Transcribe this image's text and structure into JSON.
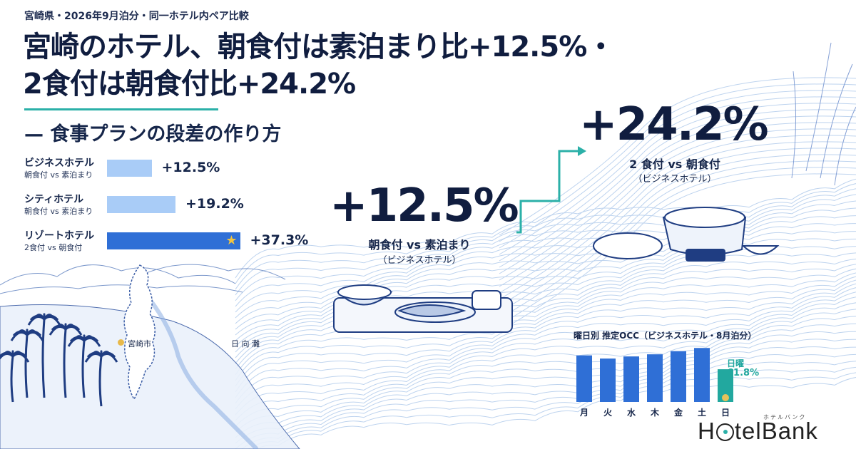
{
  "header": {
    "kicker": "宮崎県・2026年9月泊分・同一ホテル内ペア比較",
    "title_line1": "宮崎のホテル、朝食付は素泊まり比+12.5%・",
    "title_line2": "2食付は朝食付比+24.2%",
    "subtitle": "— 食事プランの段差の作り方"
  },
  "colors": {
    "navy": "#101d3f",
    "teal": "#2bb0a8",
    "bar_light": "#a9ccf7",
    "bar_highlight": "#2f6fd6",
    "star": "#f2c441"
  },
  "comparison": [
    {
      "name": "ビジネスホテル",
      "comparison": "朝食付 vs 素泊まり",
      "label": "+12.5%",
      "value": 12.5,
      "highlight": false
    },
    {
      "name": "シティホテル",
      "comparison": "朝食付 vs 素泊まり",
      "label": "+19.2%",
      "value": 19.2,
      "highlight": false
    },
    {
      "name": "リゾートホテル",
      "comparison": "2食付 vs 朝食付",
      "label": "+37.3%",
      "value": 37.3,
      "highlight": true,
      "icon": "star-icon"
    }
  ],
  "callouts": {
    "breakfast": {
      "value": "+12.5%",
      "caption": "朝食付 vs 素泊まり",
      "sub": "（ビジネスホテル）"
    },
    "two_meals": {
      "value": "+24.2%",
      "caption": "2 食付 vs 朝食付",
      "sub": "（ビジネスホテル）"
    }
  },
  "map": {
    "city": "宮崎市",
    "sea": "日 向 灘"
  },
  "chart_data": {
    "type": "bar",
    "title": "曜日別 推定OCC（ビジネスホテル・8月泊分）",
    "categories": [
      "月",
      "火",
      "水",
      "木",
      "金",
      "土",
      "日"
    ],
    "values": [
      88,
      82,
      86,
      90,
      96,
      102,
      61.8
    ],
    "highlight_category": "日",
    "highlight_label": "日曜",
    "highlight_value_label": "61.8%",
    "ylim": [
      0,
      105
    ],
    "grid": false,
    "colors": {
      "default": "#2f6fd6",
      "highlight": "#22a89f"
    }
  },
  "logo": {
    "small": "ホテルバンク",
    "word_pre": "H",
    "word_post": "telBank"
  }
}
